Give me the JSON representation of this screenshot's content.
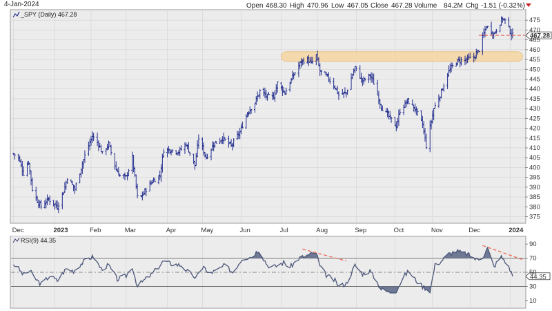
{
  "header": {
    "date": "4-Jan-2024",
    "open_label": "Open",
    "open": "468.30",
    "high_label": "High",
    "high": "470.96",
    "low_label": "Low",
    "low": "467.05",
    "close_label": "Close",
    "close": "467.28",
    "volume_label": "Volume",
    "volume": "84.2M",
    "chg_label": "Chg",
    "chg": "-1.51 (-0.32%)"
  },
  "colors": {
    "price": "#1f2a8c",
    "rsi_line": "#4a5578",
    "rsi_fill": "#5a6585",
    "band": "#f4d7a6",
    "trend": "#e8705e",
    "panel_bg": "#ececec",
    "grid": "#d2d2d2"
  },
  "chart_data": [
    {
      "type": "bar",
      "subtype": "ohlc",
      "legend": "_SPY (Daily) 467.28",
      "last_value": "467.28",
      "ylim": [
        372,
        480
      ],
      "y_ticks": [
        375,
        380,
        385,
        390,
        395,
        400,
        405,
        410,
        415,
        420,
        425,
        430,
        435,
        440,
        445,
        450,
        455,
        460,
        465,
        470,
        475
      ],
      "x_labels": [
        {
          "label": "Dec",
          "date": "2022-12-01"
        },
        {
          "label": "2023",
          "date": "2023-01-03"
        },
        {
          "label": "Feb",
          "date": "2023-02-01"
        },
        {
          "label": "Mar",
          "date": "2023-03-01"
        },
        {
          "label": "Apr",
          "date": "2023-04-03"
        },
        {
          "label": "May",
          "date": "2023-05-01"
        },
        {
          "label": "Jun",
          "date": "2023-06-01"
        },
        {
          "label": "Jul",
          "date": "2023-07-03"
        },
        {
          "label": "Aug",
          "date": "2023-08-01"
        },
        {
          "label": "Sep",
          "date": "2023-09-01"
        },
        {
          "label": "Oct",
          "date": "2023-10-02"
        },
        {
          "label": "Nov",
          "date": "2023-11-01"
        },
        {
          "label": "Dec",
          "date": "2023-12-01"
        },
        {
          "label": "2024",
          "date": "2024-01-02"
        }
      ],
      "close_path": [
        [
          "2022-12-01",
          407
        ],
        [
          "2022-12-05",
          405
        ],
        [
          "2022-12-09",
          397
        ],
        [
          "2022-12-13",
          403
        ],
        [
          "2022-12-16",
          389
        ],
        [
          "2022-12-20",
          383
        ],
        [
          "2022-12-23",
          380
        ],
        [
          "2022-12-29",
          384
        ],
        [
          "2023-01-05",
          380
        ],
        [
          "2023-01-10",
          388
        ],
        [
          "2023-01-13",
          395
        ],
        [
          "2023-01-19",
          389
        ],
        [
          "2023-01-24",
          400
        ],
        [
          "2023-01-27",
          406
        ],
        [
          "2023-02-02",
          416
        ],
        [
          "2023-02-07",
          412
        ],
        [
          "2023-02-10",
          407
        ],
        [
          "2023-02-15",
          412
        ],
        [
          "2023-02-21",
          399
        ],
        [
          "2023-02-24",
          396
        ],
        [
          "2023-03-01",
          395
        ],
        [
          "2023-03-06",
          405
        ],
        [
          "2023-03-10",
          385
        ],
        [
          "2023-03-13",
          385
        ],
        [
          "2023-03-17",
          389
        ],
        [
          "2023-03-22",
          393
        ],
        [
          "2023-03-28",
          396
        ],
        [
          "2023-03-31",
          409
        ],
        [
          "2023-04-06",
          409
        ],
        [
          "2023-04-12",
          408
        ],
        [
          "2023-04-18",
          412
        ],
        [
          "2023-04-25",
          401
        ],
        [
          "2023-04-28",
          415
        ],
        [
          "2023-05-04",
          405
        ],
        [
          "2023-05-10",
          412
        ],
        [
          "2023-05-17",
          415
        ],
        [
          "2023-05-24",
          411
        ],
        [
          "2023-05-31",
          418
        ],
        [
          "2023-06-06",
          428
        ],
        [
          "2023-06-12",
          433
        ],
        [
          "2023-06-16",
          439
        ],
        [
          "2023-06-22",
          436
        ],
        [
          "2023-06-27",
          436
        ],
        [
          "2023-06-30",
          443
        ],
        [
          "2023-07-06",
          438
        ],
        [
          "2023-07-12",
          446
        ],
        [
          "2023-07-19",
          454
        ],
        [
          "2023-07-24",
          455
        ],
        [
          "2023-07-27",
          453
        ],
        [
          "2023-07-31",
          457
        ],
        [
          "2023-08-03",
          449
        ],
        [
          "2023-08-09",
          446
        ],
        [
          "2023-08-15",
          441
        ],
        [
          "2023-08-18",
          437
        ],
        [
          "2023-08-24",
          438
        ],
        [
          "2023-08-31",
          451
        ],
        [
          "2023-09-06",
          444
        ],
        [
          "2023-09-12",
          447
        ],
        [
          "2023-09-15",
          443
        ],
        [
          "2023-09-21",
          431
        ],
        [
          "2023-09-27",
          426
        ],
        [
          "2023-10-03",
          421
        ],
        [
          "2023-10-06",
          429
        ],
        [
          "2023-10-12",
          434
        ],
        [
          "2023-10-18",
          430
        ],
        [
          "2023-10-24",
          422
        ],
        [
          "2023-10-27",
          411
        ],
        [
          "2023-11-02",
          430
        ],
        [
          "2023-11-07",
          437
        ],
        [
          "2023-11-14",
          449
        ],
        [
          "2023-11-20",
          454
        ],
        [
          "2023-11-28",
          455
        ],
        [
          "2023-12-04",
          456
        ],
        [
          "2023-12-08",
          460
        ],
        [
          "2023-12-14",
          472
        ],
        [
          "2023-12-20",
          468
        ],
        [
          "2023-12-27",
          476
        ],
        [
          "2023-12-29",
          475
        ],
        [
          "2024-01-03",
          468
        ],
        [
          "2024-01-04",
          467.28
        ]
      ],
      "annotations": {
        "resistance_band": {
          "y_from": 454,
          "y_to": 459,
          "x_from": "2023-07-03",
          "x_to": "2024-01-12"
        },
        "last_close_line": {
          "y": 467.28,
          "x_from": "2023-12-08",
          "x_to": "2024-01-12"
        }
      },
      "xlabel": "",
      "ylabel": ""
    },
    {
      "type": "line",
      "legend": "RSI(9) 44.35",
      "last_value": "44.35",
      "ylim": [
        0,
        100
      ],
      "y_ticks": [
        10,
        30,
        50,
        70,
        90
      ],
      "levels": [
        30,
        50,
        70
      ],
      "overbought": 70,
      "oversold": 30,
      "rsi_path": [
        [
          "2022-12-01",
          62
        ],
        [
          "2022-12-05",
          55
        ],
        [
          "2022-12-09",
          46
        ],
        [
          "2022-12-14",
          52
        ],
        [
          "2022-12-19",
          40
        ],
        [
          "2022-12-23",
          33
        ],
        [
          "2022-12-30",
          45
        ],
        [
          "2023-01-05",
          38
        ],
        [
          "2023-01-12",
          55
        ],
        [
          "2023-01-18",
          52
        ],
        [
          "2023-01-24",
          62
        ],
        [
          "2023-01-30",
          70
        ],
        [
          "2023-02-03",
          72
        ],
        [
          "2023-02-09",
          55
        ],
        [
          "2023-02-15",
          60
        ],
        [
          "2023-02-22",
          40
        ],
        [
          "2023-03-01",
          45
        ],
        [
          "2023-03-06",
          58
        ],
        [
          "2023-03-10",
          30
        ],
        [
          "2023-03-15",
          38
        ],
        [
          "2023-03-22",
          48
        ],
        [
          "2023-03-31",
          66
        ],
        [
          "2023-04-06",
          62
        ],
        [
          "2023-04-14",
          60
        ],
        [
          "2023-04-20",
          50
        ],
        [
          "2023-04-26",
          42
        ],
        [
          "2023-05-02",
          60
        ],
        [
          "2023-05-05",
          48
        ],
        [
          "2023-05-12",
          52
        ],
        [
          "2023-05-19",
          60
        ],
        [
          "2023-05-25",
          50
        ],
        [
          "2023-06-02",
          70
        ],
        [
          "2023-06-09",
          72
        ],
        [
          "2023-06-15",
          82
        ],
        [
          "2023-06-22",
          60
        ],
        [
          "2023-06-28",
          58
        ],
        [
          "2023-07-05",
          64
        ],
        [
          "2023-07-10",
          57
        ],
        [
          "2023-07-17",
          70
        ],
        [
          "2023-07-24",
          74
        ],
        [
          "2023-07-31",
          78
        ],
        [
          "2023-08-03",
          58
        ],
        [
          "2023-08-08",
          46
        ],
        [
          "2023-08-15",
          38
        ],
        [
          "2023-08-18",
          30
        ],
        [
          "2023-08-24",
          34
        ],
        [
          "2023-08-31",
          60
        ],
        [
          "2023-09-06",
          48
        ],
        [
          "2023-09-12",
          52
        ],
        [
          "2023-09-15",
          44
        ],
        [
          "2023-09-21",
          26
        ],
        [
          "2023-09-27",
          22
        ],
        [
          "2023-10-03",
          24
        ],
        [
          "2023-10-09",
          44
        ],
        [
          "2023-10-13",
          52
        ],
        [
          "2023-10-18",
          40
        ],
        [
          "2023-10-24",
          30
        ],
        [
          "2023-10-30",
          24
        ],
        [
          "2023-11-03",
          60
        ],
        [
          "2023-11-08",
          66
        ],
        [
          "2023-11-14",
          76
        ],
        [
          "2023-11-20",
          80
        ],
        [
          "2023-11-28",
          76
        ],
        [
          "2023-12-01",
          74
        ],
        [
          "2023-12-06",
          68
        ],
        [
          "2023-12-11",
          72
        ],
        [
          "2023-12-15",
          84
        ],
        [
          "2023-12-20",
          58
        ],
        [
          "2023-12-26",
          72
        ],
        [
          "2023-12-29",
          66
        ],
        [
          "2024-01-03",
          50
        ],
        [
          "2024-01-04",
          44.35
        ]
      ],
      "annotations": {
        "trendline_1": {
          "from": [
            "2023-07-20",
            83
          ],
          "to": [
            "2023-08-24",
            66
          ]
        },
        "trendline_2": {
          "from": [
            "2023-12-11",
            88
          ],
          "to": [
            "2024-01-12",
            68
          ]
        }
      },
      "xlabel": "",
      "ylabel": ""
    }
  ]
}
